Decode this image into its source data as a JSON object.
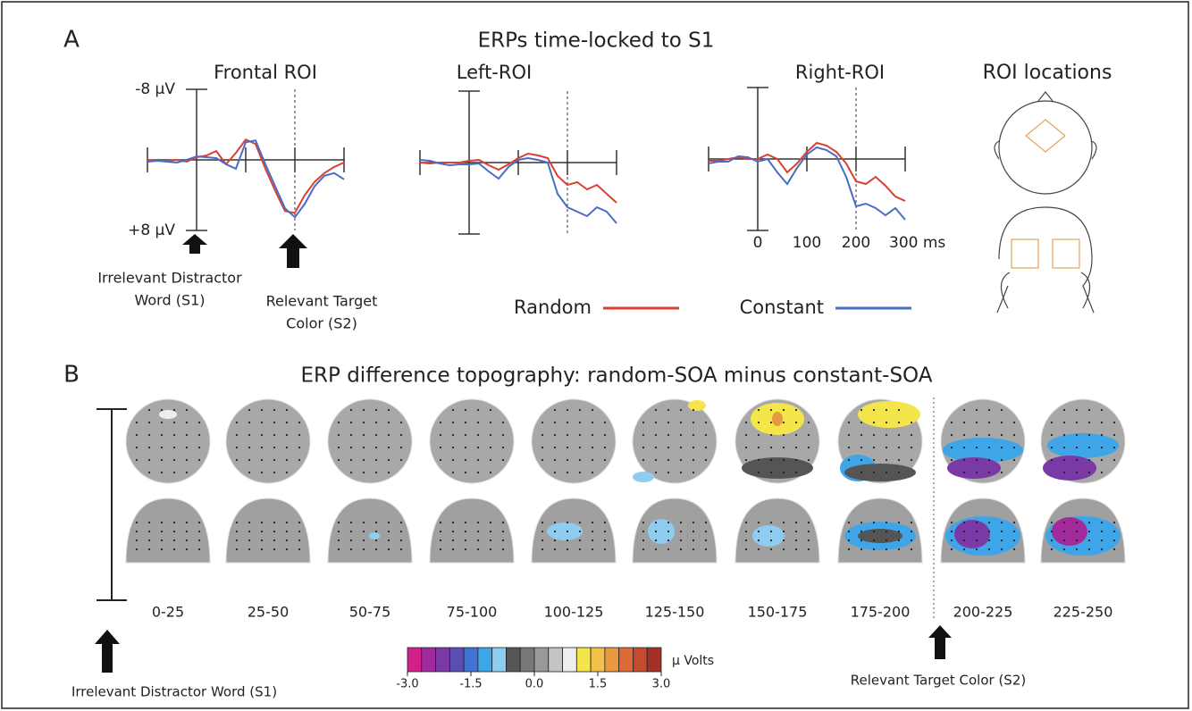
{
  "panel_a": {
    "label": "A",
    "title": "ERPs time-locked to S1",
    "roi_title": "ROI locations",
    "annotations": [
      {
        "lines": [
          "Irrelevant Distractor",
          "Word (S1)"
        ]
      },
      {
        "lines": [
          "Relevant Target",
          "Color (S2)"
        ]
      }
    ]
  },
  "chart_data": [
    {
      "type": "line",
      "title": "Frontal ROI",
      "x": [
        -100,
        -80,
        -60,
        -40,
        -20,
        0,
        20,
        40,
        60,
        80,
        100,
        120,
        140,
        160,
        180,
        200,
        220,
        240,
        260,
        280,
        300
      ],
      "series": [
        {
          "name": "Random",
          "color": "#d9402e",
          "values": [
            0,
            0.1,
            0.1,
            0,
            0.2,
            -0.3,
            -0.5,
            -1.0,
            0.5,
            -0.8,
            -2.3,
            -1.8,
            1.0,
            3.5,
            5.8,
            6.0,
            4.0,
            2.5,
            1.5,
            0.8,
            0.3
          ]
        },
        {
          "name": "Constant",
          "color": "#4a6cc6",
          "values": [
            0.2,
            0.1,
            0.2,
            0.3,
            0,
            -0.4,
            -0.3,
            -0.2,
            0.5,
            1.0,
            -2.0,
            -2.2,
            0.5,
            3.0,
            5.5,
            6.5,
            5.0,
            3.0,
            1.8,
            1.5,
            2.2
          ]
        }
      ],
      "xlim": [
        -100,
        300
      ],
      "ylim": [
        -8,
        8
      ],
      "y_inverted": true,
      "xticks": [
        0,
        100,
        200,
        {
          "value": 300,
          "label": "300 ms"
        }
      ],
      "yticks": [
        {
          "value": -8,
          "label": "-8 µV"
        },
        {
          "value": 8,
          "label": "+8 µV"
        }
      ],
      "xtick_labels": false,
      "ytick_labels": true,
      "marker_line_x": 200
    },
    {
      "type": "line",
      "title": "Left-ROI",
      "x": [
        -100,
        -80,
        -60,
        -40,
        -20,
        0,
        20,
        40,
        60,
        80,
        100,
        120,
        140,
        160,
        180,
        200,
        220,
        240,
        260,
        280,
        300
      ],
      "series": [
        {
          "color": "#d9402e",
          "values": [
            0,
            0.1,
            0,
            0,
            0,
            -0.2,
            -0.3,
            0.3,
            0.8,
            0.2,
            -0.5,
            -1.0,
            -0.8,
            -0.5,
            1.5,
            2.5,
            2.2,
            3.0,
            2.5,
            3.5,
            4.5
          ]
        },
        {
          "color": "#4a6cc6",
          "values": [
            -0.3,
            -0.2,
            0.1,
            0.3,
            0.2,
            0.2,
            0.1,
            1.0,
            1.8,
            0.5,
            -0.3,
            -0.5,
            -0.3,
            0,
            3.5,
            5.0,
            5.5,
            6.0,
            5.0,
            5.5,
            6.8
          ]
        }
      ],
      "xlim": [
        -100,
        300
      ],
      "ylim": [
        -8,
        8
      ],
      "y_inverted": true,
      "xticks": [
        0,
        100,
        200,
        {
          "value": 300,
          "label": "300 ms"
        }
      ],
      "yticks": [
        {
          "value": -8,
          "label": "-8 µV"
        },
        {
          "value": 8,
          "label": "+8 µV"
        }
      ],
      "xtick_labels": false,
      "ytick_labels": false,
      "marker_line_x": 200
    },
    {
      "type": "line",
      "title": "Right-ROI",
      "x": [
        -100,
        -80,
        -60,
        -40,
        -20,
        0,
        20,
        40,
        60,
        80,
        100,
        120,
        140,
        160,
        180,
        200,
        220,
        240,
        260,
        280,
        300
      ],
      "series": [
        {
          "color": "#d9402e",
          "values": [
            0.2,
            0.2,
            0,
            -0.2,
            0,
            0,
            -0.5,
            0,
            1.5,
            0.5,
            -0.8,
            -1.8,
            -1.5,
            -0.8,
            0.5,
            2.5,
            2.8,
            2.0,
            3.0,
            4.2,
            4.7
          ]
        },
        {
          "color": "#4a6cc6",
          "values": [
            0.5,
            0.3,
            0.3,
            -0.3,
            -0.2,
            0.3,
            0,
            1.5,
            2.8,
            1.0,
            -0.5,
            -1.3,
            -1.0,
            -0.3,
            2.0,
            5.3,
            5.0,
            5.5,
            6.3,
            5.5,
            6.8
          ]
        }
      ],
      "xlim": [
        -100,
        300
      ],
      "ylim": [
        -8,
        8
      ],
      "y_inverted": true,
      "xticks": [
        0,
        100,
        200,
        {
          "value": 300,
          "label": "300 ms"
        }
      ],
      "yticks": [
        {
          "value": -8,
          "label": "-8 µV"
        },
        {
          "value": 8,
          "label": "+8 µV"
        }
      ],
      "xtick_labels": true,
      "ytick_labels": false,
      "marker_line_x": 200
    }
  ],
  "panel_b": {
    "label": "B",
    "title": "ERP difference topography: random-SOA minus constant-SOA",
    "bins": [
      "0-25",
      "25-50",
      "50-75",
      "75-100",
      "100-125",
      "125-150",
      "150-175",
      "175-200",
      "200-225",
      "225-250"
    ],
    "colorbar": {
      "range": [
        -3,
        3
      ],
      "unit": "µ Volts",
      "ticks": [
        {
          "value": -3,
          "label": "-3.0"
        },
        -1.5,
        {
          "value": 0,
          "label": "0.0"
        },
        1.5,
        {
          "value": 3,
          "label": "3.0"
        }
      ],
      "colors": [
        "#d21f8a",
        "#a32a9c",
        "#7a3aa6",
        "#5b4db4",
        "#3f74d2",
        "#3ea6e8",
        "#8fcdf0",
        "#555555",
        "#777777",
        "#999999",
        "#c4c4c4",
        "#eeeeee",
        "#f4e64a",
        "#f2c14a",
        "#e8983e",
        "#dc6b38",
        "#c44a30",
        "#a33127"
      ]
    },
    "annotations": [
      "Irrelevant Distractor Word (S1)",
      "Relevant Target Color (S2)"
    ]
  }
}
